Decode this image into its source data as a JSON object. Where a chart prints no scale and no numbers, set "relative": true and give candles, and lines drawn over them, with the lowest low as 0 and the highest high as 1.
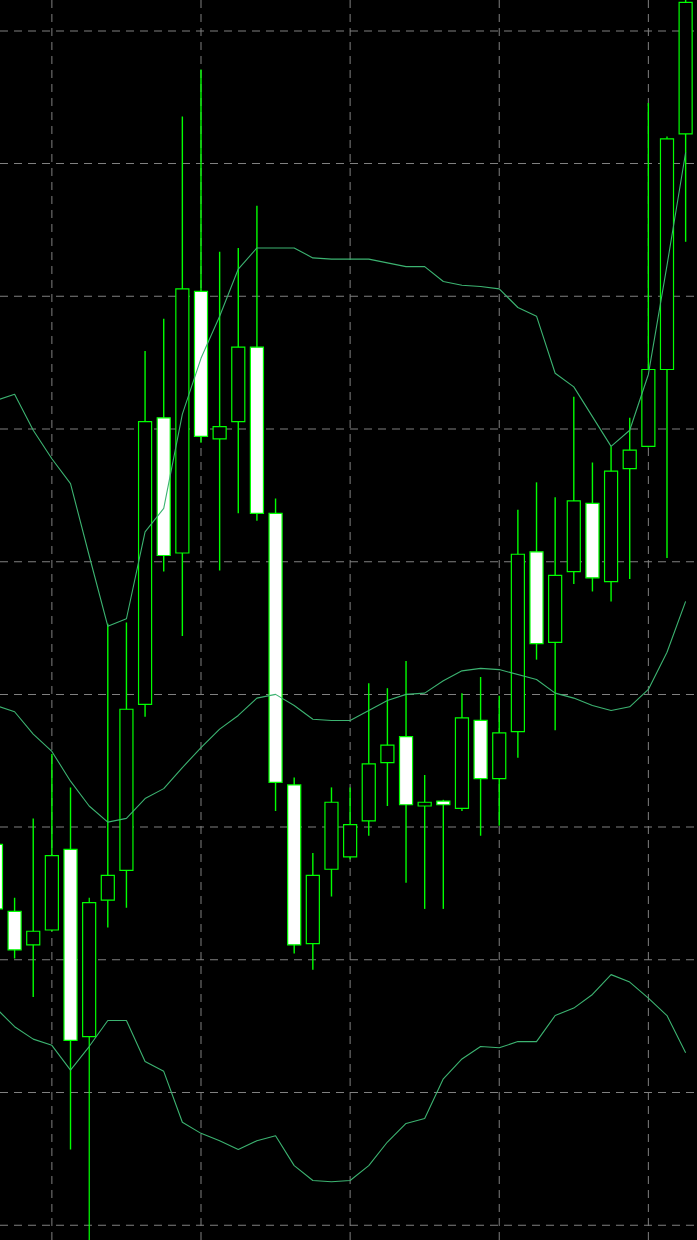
{
  "chart_data": {
    "type": "candlestick",
    "relative": true,
    "grid": true,
    "color": "#00ff00",
    "categories": [
      null,
      null,
      null,
      null,
      null,
      null,
      null,
      null,
      null,
      null,
      null,
      null,
      null,
      null,
      null,
      null,
      null,
      null,
      null,
      null,
      null,
      null,
      null,
      null,
      null,
      null,
      null,
      null,
      null,
      null,
      null,
      null,
      null,
      null,
      null,
      null,
      null,
      null
    ],
    "ohlc": [
      [
        0.319,
        0.319,
        0.267,
        0.267
      ],
      [
        0.265,
        0.276,
        0.227,
        0.234
      ],
      [
        0.238,
        0.34,
        0.196,
        0.249
      ],
      [
        0.25,
        0.392,
        0.249,
        0.31
      ],
      [
        0.315,
        0.365,
        0.073,
        0.161
      ],
      [
        0.164,
        0.276,
        0,
        0.272
      ],
      [
        0.274,
        0.497,
        0.252,
        0.294
      ],
      [
        0.298,
        0.498,
        0.268,
        0.428
      ],
      [
        0.432,
        0.717,
        0.422,
        0.66
      ],
      [
        0.663,
        0.743,
        0.539,
        0.552
      ],
      [
        0.554,
        0.906,
        0.487,
        0.767
      ],
      [
        0.765,
        0.944,
        0.643,
        0.648
      ],
      [
        0.646,
        0.797,
        0.54,
        0.656
      ],
      [
        0.66,
        0.8,
        0.586,
        0.72
      ],
      [
        0.72,
        0.834,
        0.58,
        0.586
      ],
      [
        0.586,
        0.598,
        0.346,
        0.369
      ],
      [
        0.367,
        0.373,
        0.231,
        0.238
      ],
      [
        0.239,
        0.312,
        0.218,
        0.294
      ],
      [
        0.299,
        0.365,
        0.277,
        0.353
      ],
      [
        0.309,
        0.365,
        0.307,
        0.335
      ],
      [
        0.338,
        0.449,
        0.326,
        0.384
      ],
      [
        0.385,
        0.445,
        0.35,
        0.399
      ],
      [
        0.406,
        0.467,
        0.288,
        0.351
      ],
      [
        0.35,
        0.375,
        0.267,
        0.353
      ],
      [
        0.354,
        0.355,
        0.267,
        0.351
      ],
      [
        0.348,
        0.441,
        0.346,
        0.421
      ],
      [
        0.419,
        0.454,
        0.326,
        0.372
      ],
      [
        0.372,
        0.439,
        0.334,
        0.409
      ],
      [
        0.41,
        0.589,
        0.389,
        0.553
      ],
      [
        0.555,
        0.611,
        0.468,
        0.481
      ],
      [
        0.482,
        0.599,
        0.411,
        0.536
      ],
      [
        0.539,
        0.68,
        0.529,
        0.596
      ],
      [
        0.594,
        0.627,
        0.523,
        0.534
      ],
      [
        0.531,
        0.64,
        0.515,
        0.62
      ],
      [
        0.622,
        0.663,
        0.533,
        0.637
      ],
      [
        0.64,
        0.917,
        0.639,
        0.702
      ],
      [
        0.702,
        0.89,
        0.55,
        0.888
      ],
      [
        0.892,
        1,
        0.805,
        0.998
      ]
    ],
    "series": [
      {
        "type": "line",
        "color": "#3cb371",
        "values": [
          0.677,
          0.682,
          0.653,
          0.63,
          0.61,
          0.552,
          0.495,
          0.501,
          0.571,
          0.59,
          0.666,
          0.711,
          0.745,
          0.783,
          0.8,
          0.8,
          0.8,
          0.792,
          0.791,
          0.791,
          0.791,
          0.788,
          0.785,
          0.785,
          0.773,
          0.77,
          0.769,
          0.767,
          0.752,
          0.745,
          0.699,
          0.688,
          0.664,
          0.64,
          0.653,
          0.698,
          0.786,
          0.877
        ]
      },
      {
        "type": "line",
        "color": "#3cb371",
        "values": [
          0.431,
          0.426,
          0.408,
          0.394,
          0.37,
          0.35,
          0.337,
          0.34,
          0.356,
          0.364,
          0.381,
          0.397,
          0.412,
          0.423,
          0.437,
          0.44,
          0.431,
          0.42,
          0.419,
          0.419,
          0.427,
          0.435,
          0.44,
          0.441,
          0.451,
          0.459,
          0.461,
          0.46,
          0.456,
          0.452,
          0.441,
          0.437,
          0.431,
          0.427,
          0.43,
          0.444,
          0.474,
          0.515
        ]
      },
      {
        "type": "line",
        "color": "#3cb371",
        "values": [
          0.187,
          0.172,
          0.162,
          0.157,
          0.137,
          0.156,
          0.177,
          0.177,
          0.144,
          0.136,
          0.095,
          0.086,
          0.08,
          0.073,
          0.08,
          0.084,
          0.06,
          0.048,
          0.047,
          0.048,
          0.06,
          0.079,
          0.094,
          0.098,
          0.13,
          0.146,
          0.156,
          0.155,
          0.16,
          0.16,
          0.181,
          0.187,
          0.198,
          0.214,
          0.208,
          0.195,
          0.181,
          0.151
        ]
      }
    ]
  }
}
